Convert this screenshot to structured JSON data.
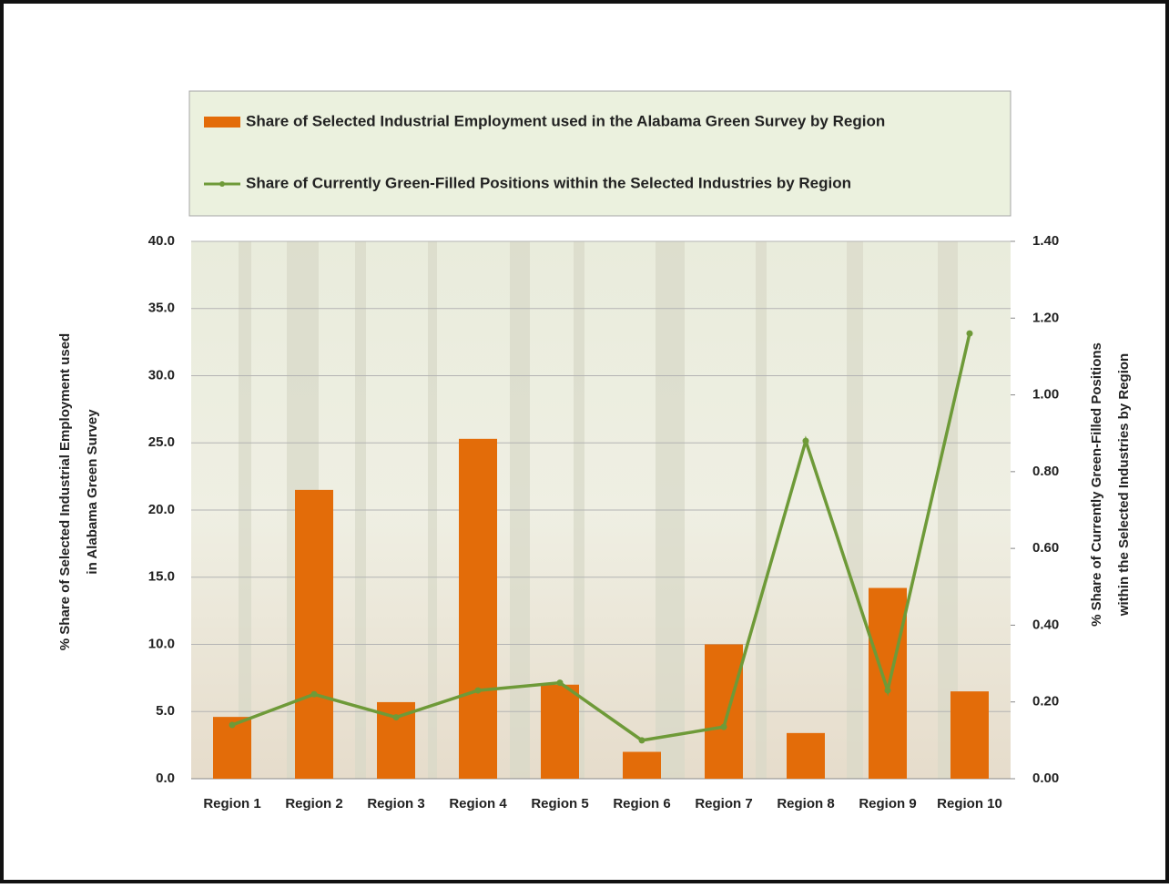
{
  "chart_data": {
    "type": "bar-line",
    "legend": "top",
    "grid": true,
    "categories": [
      "Region 1",
      "Region 2",
      "Region 3",
      "Region 4",
      "Region 5",
      "Region 6",
      "Region 7",
      "Region 8",
      "Region 9",
      "Region 10"
    ],
    "series": [
      {
        "name": "Share of Selected Industrial Employment used in the Alabama Green Survey by Region",
        "type": "bar",
        "axis": "y",
        "color": "#e36c09",
        "values": [
          4.6,
          21.5,
          5.7,
          25.3,
          7.0,
          2.0,
          10.0,
          3.4,
          14.2,
          6.5
        ]
      },
      {
        "name": "Share of Currently Green-Filled Positions within the Selected Industries by Region",
        "type": "line",
        "axis": "y2",
        "color": "#6e9a38",
        "values": [
          0.14,
          0.22,
          0.16,
          0.23,
          0.25,
          0.1,
          0.135,
          0.88,
          0.23,
          1.16
        ]
      }
    ],
    "y_label": [
      "% Share of Selected Industrial Employment used",
      "in Alabama Green Survey"
    ],
    "y2_label": [
      "% Share of Currently Green-Filled Positions",
      "within the Selected Industries by Region"
    ],
    "ylim": [
      0,
      40
    ],
    "yticks": [
      {
        "value": 0,
        "label": "0.0"
      },
      {
        "value": 5,
        "label": "5.0"
      },
      {
        "value": 10,
        "label": "10.0"
      },
      {
        "value": 15,
        "label": "15.0"
      },
      {
        "value": 20,
        "label": "20.0"
      },
      {
        "value": 25,
        "label": "25.0"
      },
      {
        "value": 30,
        "label": "30.0"
      },
      {
        "value": 35,
        "label": "35.0"
      },
      {
        "value": 40,
        "label": "40.0"
      }
    ],
    "y2lim": [
      0,
      1.4
    ],
    "y2ticks": [
      {
        "value": 0,
        "label": "0.00"
      },
      {
        "value": 0.2,
        "label": "0.20"
      },
      {
        "value": 0.4,
        "label": "0.40"
      },
      {
        "value": 0.6,
        "label": "0.60"
      },
      {
        "value": 0.8,
        "label": "0.80"
      },
      {
        "value": 1.0,
        "label": "1.00"
      },
      {
        "value": 1.2,
        "label": "1.20"
      },
      {
        "value": 1.4,
        "label": "1.40"
      }
    ]
  }
}
